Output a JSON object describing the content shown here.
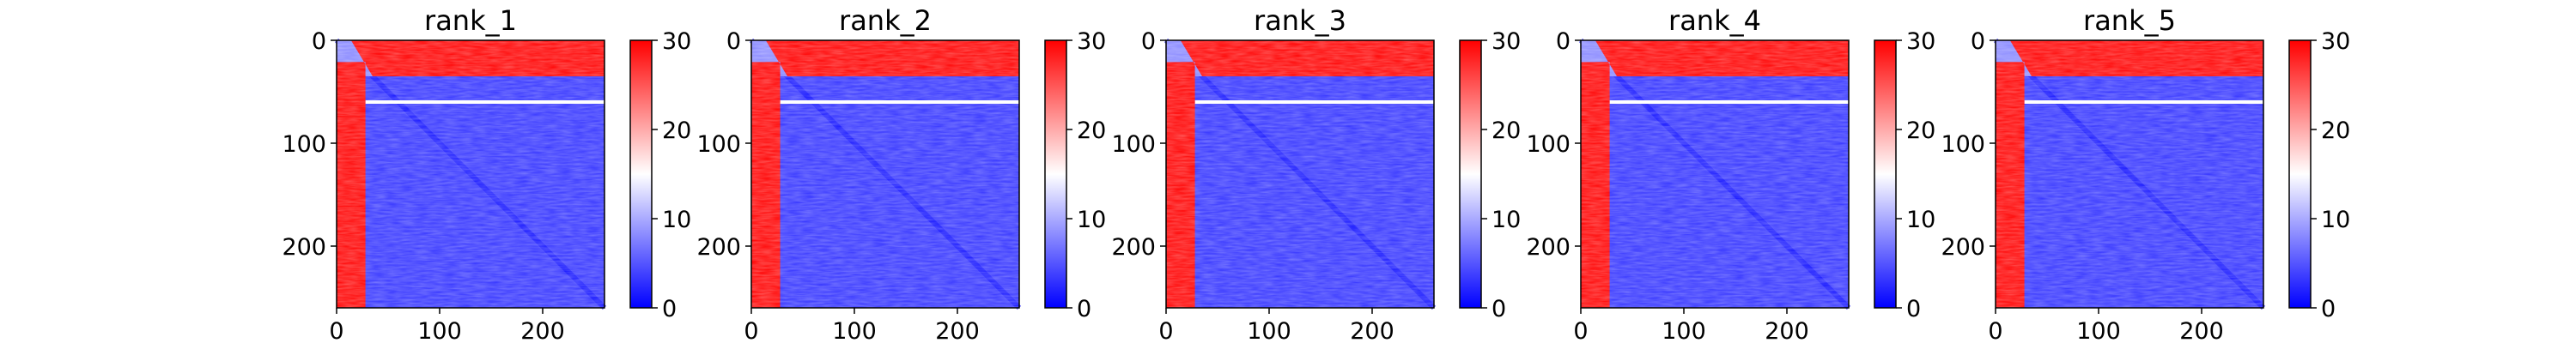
{
  "chart_data": {
    "type": "heatmap",
    "colormap": "bwr",
    "colorbar": {
      "ticks": [
        0,
        10,
        20,
        30
      ],
      "range": [
        0,
        30
      ]
    },
    "axis_range": {
      "x": [
        0,
        260
      ],
      "y": [
        0,
        260
      ]
    },
    "y_inverted": true,
    "panels": [
      {
        "title": "rank_1",
        "xticks": [
          0,
          100,
          200
        ],
        "yticks": [
          0,
          100,
          200
        ]
      },
      {
        "title": "rank_2",
        "xticks": [
          0,
          100,
          200
        ],
        "yticks": [
          0,
          100,
          200
        ]
      },
      {
        "title": "rank_3",
        "xticks": [
          0,
          100,
          200
        ],
        "yticks": [
          0,
          100,
          200
        ]
      },
      {
        "title": "rank_4",
        "xticks": [
          0,
          100,
          200
        ],
        "yticks": [
          0,
          100,
          200
        ]
      },
      {
        "title": "rank_5",
        "xticks": [
          0,
          100,
          200
        ],
        "yticks": [
          0,
          100,
          200
        ]
      }
    ],
    "features": {
      "high_region_rows": [
        0,
        35
      ],
      "high_region_cols": [
        0,
        28
      ],
      "white_stripe_row": 60,
      "diagonal": true
    }
  }
}
